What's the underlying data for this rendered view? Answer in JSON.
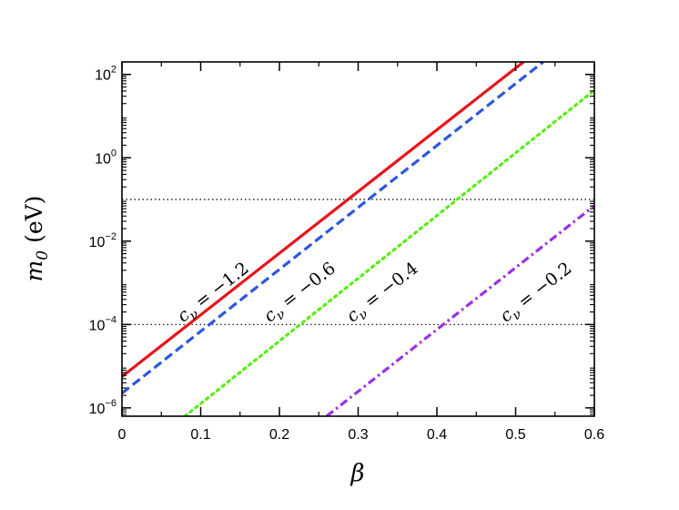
{
  "chart_data": {
    "type": "line",
    "title": "",
    "xlabel": "β",
    "ylabel": "m₀ (eV)",
    "xlim": [
      0,
      0.6
    ],
    "ylim_log10": [
      -6.2,
      2.3
    ],
    "yscale": "log",
    "grid": false,
    "x_ticks": [
      0,
      0.1,
      0.2,
      0.3,
      0.4,
      0.5,
      0.6
    ],
    "x_tick_labels": [
      "0",
      "0.1",
      "0.2",
      "0.3",
      "0.4",
      "0.5",
      "0.6"
    ],
    "y_ticks_log10": [
      -6,
      -4,
      -2,
      0,
      2
    ],
    "y_tick_labels": [
      "10⁻⁶",
      "10⁻⁴",
      "10⁻²",
      "10⁰",
      "10²"
    ],
    "reference_lines": [
      {
        "y": 0.1,
        "style": "dotted",
        "color": "#000000"
      },
      {
        "y": 0.0001,
        "style": "dotted",
        "color": "#000000"
      }
    ],
    "series": [
      {
        "label": "c_ν = −1.2",
        "color": "#e8141b",
        "dash": "solid",
        "x": [
          0,
          0.51
        ],
        "log10_y": [
          -5.25,
          2.3
        ]
      },
      {
        "label": "c_ν = −0.6",
        "color": "#2e56e0",
        "dash": "dashed",
        "x": [
          0,
          0.535
        ],
        "log10_y": [
          -5.65,
          2.3
        ]
      },
      {
        "label": "c_ν = −0.4",
        "color": "#55ee11",
        "dash": "dotted",
        "x": [
          0.08,
          0.6
        ],
        "log10_y": [
          -6.2,
          1.62
        ]
      },
      {
        "label": "c_ν = −0.2",
        "color": "#9b30e8",
        "dash": "dashdot",
        "x": [
          0.26,
          0.6
        ],
        "log10_y": [
          -6.2,
          -1.15
        ]
      }
    ],
    "annotations": [
      {
        "text": "c_ν = −1.2",
        "prefix": "c",
        "sub": "ν",
        "rest": " = −1.2",
        "x": 0.12,
        "log10_y": -3.33
      },
      {
        "text": "c_ν = −0.6",
        "prefix": "c",
        "sub": "ν",
        "rest": " = −0.6",
        "x": 0.23,
        "log10_y": -3.33
      },
      {
        "text": "c_ν = −0.4",
        "prefix": "c",
        "sub": "ν",
        "rest": " = −0.4",
        "x": 0.335,
        "log10_y": -3.33
      },
      {
        "text": "c_ν = −0.2",
        "prefix": "c",
        "sub": "ν",
        "rest": " = −0.2",
        "x": 0.53,
        "log10_y": -3.33
      }
    ]
  }
}
